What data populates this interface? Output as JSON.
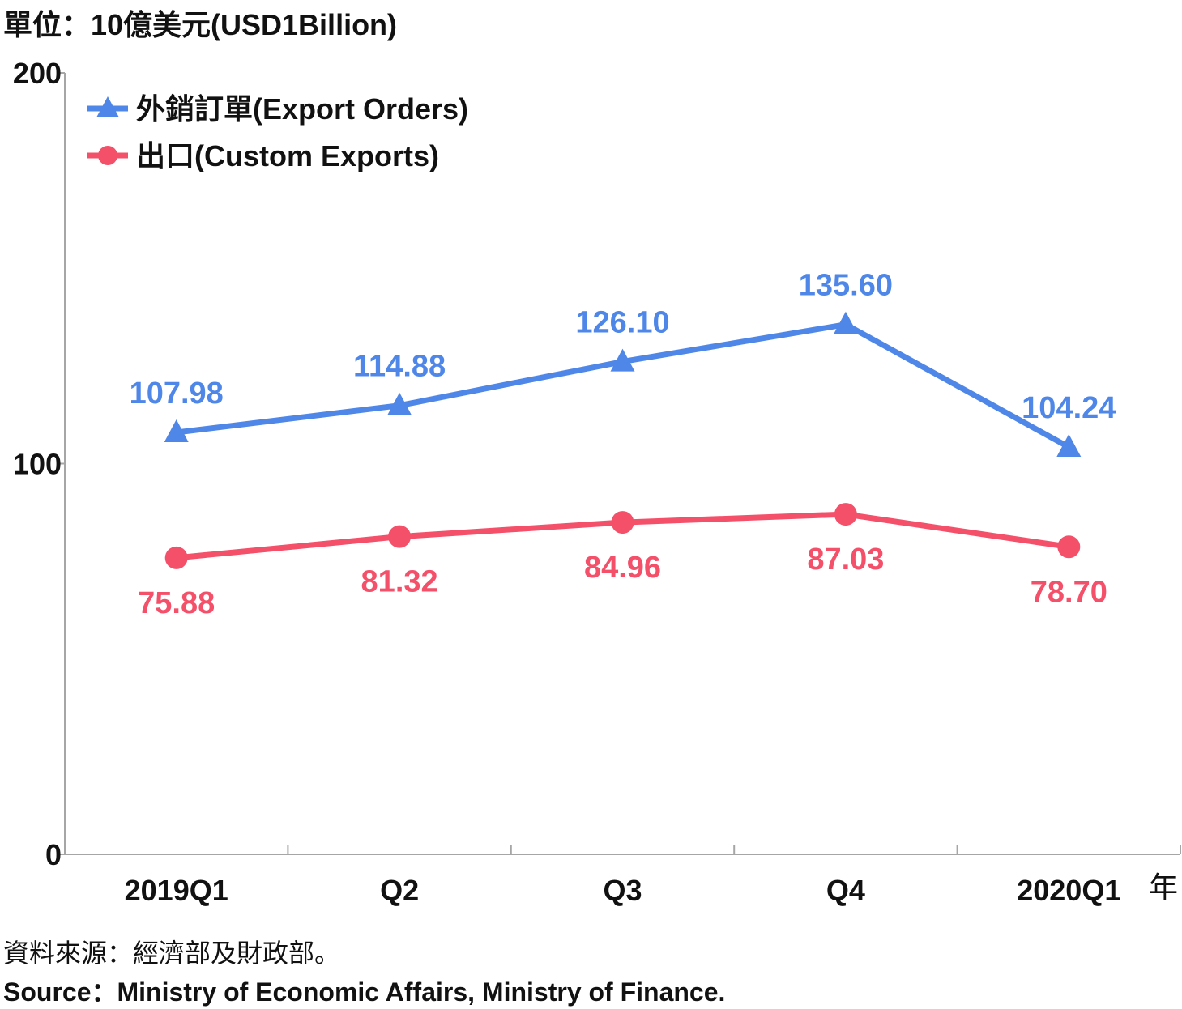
{
  "chart_data": {
    "type": "line",
    "unit_label": "單位：10億美元(USD1Billion)",
    "categories": [
      "2019Q1",
      "Q2",
      "Q3",
      "Q4",
      "2020Q1"
    ],
    "x_axis_suffix": "年",
    "ylim": [
      0,
      200
    ],
    "y_ticks": [
      "0",
      "100",
      "200"
    ],
    "grid": false,
    "legend_position": "top-left",
    "series": [
      {
        "name": "外銷訂單(Export Orders)",
        "marker": "triangle",
        "color": "#4f87e8",
        "values": [
          107.98,
          114.88,
          126.1,
          135.6,
          104.24
        ],
        "labels": [
          "107.98",
          "114.88",
          "126.10",
          "135.60",
          "104.24"
        ]
      },
      {
        "name": "出口(Custom Exports)",
        "marker": "circle",
        "color": "#f4506a",
        "values": [
          75.88,
          81.32,
          84.96,
          87.03,
          78.7
        ],
        "labels": [
          "75.88",
          "81.32",
          "84.96",
          "87.03",
          "78.70"
        ]
      }
    ]
  },
  "source": {
    "zh": "資料來源：經濟部及財政部。",
    "en": "Source：Ministry of Economic Affairs, Ministry of Finance."
  }
}
